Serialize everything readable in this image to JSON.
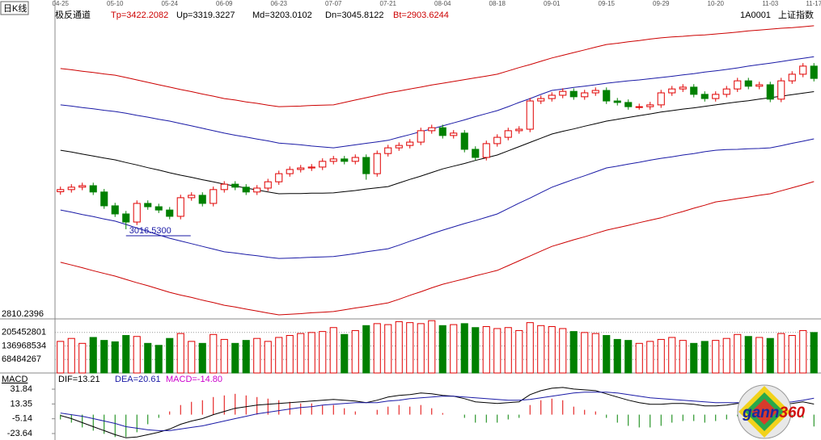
{
  "header": {
    "period": "日K线",
    "indicator": "极反通道",
    "values": [
      {
        "text": "Tp=3422.2082",
        "color": "#cc0000"
      },
      {
        "text": "Up=3319.3227",
        "color": "#000000"
      },
      {
        "text": "Md=3203.0102",
        "color": "#000000"
      },
      {
        "text": "Dn=3045.8122",
        "color": "#000000"
      },
      {
        "text": "Bt=2903.6244",
        "color": "#cc0000"
      }
    ],
    "code": "1A0001",
    "name": "上证指数"
  },
  "logo": {
    "part1": "gann",
    "part2": "360"
  },
  "chart_data": [
    {
      "type": "candlestick",
      "categories": [
        "04-25",
        null,
        null,
        null,
        null,
        "05-10",
        null,
        null,
        null,
        null,
        "05-24",
        null,
        null,
        null,
        null,
        "06-09",
        null,
        null,
        null,
        null,
        "06-23",
        null,
        null,
        null,
        null,
        "07-07",
        null,
        null,
        null,
        null,
        "07-21",
        null,
        null,
        null,
        null,
        "08-04",
        null,
        null,
        null,
        null,
        "08-18",
        null,
        null,
        null,
        null,
        "09-01",
        null,
        null,
        null,
        null,
        "09-15",
        null,
        null,
        null,
        null,
        "09-29",
        null,
        null,
        null,
        null,
        "10-20",
        null,
        null,
        null,
        null,
        "11-03",
        null,
        null,
        null,
        "11-17"
      ],
      "open": [
        2870,
        2877,
        2885,
        2890,
        2869,
        2823,
        2796,
        2769,
        2831,
        2820,
        2809,
        2788,
        2850,
        2858,
        2831,
        2877,
        2895,
        2885,
        2869,
        2882,
        2903,
        2930,
        2944,
        2949,
        2952,
        2971,
        2979,
        2971,
        2984,
        2930,
        2997,
        3016,
        3024,
        3035,
        3073,
        3083,
        3057,
        3065,
        3011,
        2984,
        3030,
        3051,
        3073,
        3078,
        3172,
        3180,
        3191,
        3204,
        3186,
        3199,
        3207,
        3172,
        3167,
        3153,
        3153,
        3159,
        3199,
        3212,
        3218,
        3194,
        3180,
        3194,
        3212,
        3239,
        3221,
        3226,
        3178,
        3239,
        3261,
        3288
      ],
      "high": [
        2887,
        2895,
        2900,
        2900,
        2879,
        2833,
        2806,
        2841,
        2841,
        2830,
        2819,
        2860,
        2868,
        2868,
        2887,
        2905,
        2905,
        2895,
        2892,
        2913,
        2940,
        2954,
        2959,
        2962,
        2981,
        2989,
        2989,
        2994,
        2994,
        3007,
        3026,
        3034,
        3045,
        3083,
        3093,
        3093,
        3075,
        3075,
        3021,
        3040,
        3061,
        3083,
        3088,
        3182,
        3190,
        3201,
        3214,
        3214,
        3209,
        3217,
        3217,
        3182,
        3177,
        3163,
        3169,
        3209,
        3222,
        3228,
        3228,
        3204,
        3204,
        3222,
        3249,
        3249,
        3236,
        3236,
        3249,
        3271,
        3298,
        3298
      ],
      "low": [
        2860,
        2867,
        2875,
        2859,
        2813,
        2786,
        2745,
        2759,
        2810,
        2799,
        2778,
        2778,
        2840,
        2821,
        2821,
        2867,
        2875,
        2859,
        2859,
        2872,
        2893,
        2920,
        2934,
        2939,
        2942,
        2961,
        2961,
        2961,
        2910,
        2920,
        2987,
        3006,
        3014,
        3025,
        3063,
        3047,
        3047,
        3001,
        2974,
        2974,
        3020,
        3041,
        3063,
        3068,
        3162,
        3170,
        3181,
        3176,
        3176,
        3189,
        3162,
        3157,
        3143,
        3143,
        3143,
        3149,
        3189,
        3202,
        3184,
        3170,
        3170,
        3184,
        3202,
        3211,
        3211,
        3168,
        3168,
        3229,
        3251,
        3237
      ],
      "close": [
        2877,
        2885,
        2890,
        2869,
        2823,
        2796,
        2769,
        2831,
        2820,
        2809,
        2788,
        2850,
        2858,
        2831,
        2877,
        2895,
        2885,
        2869,
        2882,
        2903,
        2930,
        2944,
        2949,
        2952,
        2971,
        2979,
        2971,
        2984,
        2930,
        2997,
        3016,
        3024,
        3035,
        3073,
        3083,
        3057,
        3065,
        3011,
        2984,
        3030,
        3051,
        3073,
        3078,
        3172,
        3180,
        3191,
        3204,
        3186,
        3199,
        3207,
        3172,
        3167,
        3153,
        3153,
        3159,
        3199,
        3212,
        3218,
        3194,
        3180,
        3194,
        3212,
        3239,
        3221,
        3226,
        3178,
        3239,
        3261,
        3288,
        3247
      ],
      "up_color": "#e00000",
      "down_color": "#008000",
      "ylim": [
        2446.6,
        3475.8
      ],
      "annotation": "3016.5300",
      "annotation_color": "#1a1aa6",
      "bottom_label": "2810.2396",
      "series": [
        {
          "color": "#cc0000",
          "values": [
            3280,
            3276,
            3271,
            3267,
            3262,
            3258,
            3250,
            3242,
            3234,
            3226,
            3218,
            3210,
            3203,
            3195,
            3188,
            3180,
            3175,
            3169,
            3164,
            3158,
            3153,
            3154,
            3155,
            3157,
            3158,
            3159,
            3167,
            3175,
            3183,
            3191,
            3199,
            3205,
            3212,
            3218,
            3225,
            3231,
            3237,
            3243,
            3249,
            3255,
            3261,
            3272,
            3283,
            3293,
            3304,
            3315,
            3324,
            3333,
            3342,
            3351,
            3360,
            3364,
            3369,
            3373,
            3378,
            3382,
            3385,
            3387,
            3390,
            3392,
            3395,
            3398,
            3401,
            3405,
            3408,
            3411,
            3414,
            3416,
            3419,
            3422.2082
          ]
        },
        {
          "color": "#1a1aa6",
          "values": [
            3159,
            3155,
            3150,
            3146,
            3141,
            3137,
            3131,
            3124,
            3118,
            3111,
            3105,
            3097,
            3089,
            3081,
            3073,
            3065,
            3058,
            3052,
            3045,
            3039,
            3032,
            3029,
            3026,
            3022,
            3019,
            3016,
            3021,
            3026,
            3031,
            3036,
            3041,
            3051,
            3060,
            3070,
            3079,
            3089,
            3099,
            3109,
            3120,
            3130,
            3140,
            3153,
            3167,
            3180,
            3194,
            3207,
            3212,
            3217,
            3221,
            3226,
            3231,
            3235,
            3239,
            3242,
            3246,
            3250,
            3254,
            3259,
            3263,
            3268,
            3272,
            3277,
            3282,
            3288,
            3293,
            3298,
            3303,
            3309,
            3314,
            3319.3227
          ]
        },
        {
          "color": "#000000",
          "values": [
            3008,
            3002,
            2995,
            2989,
            2982,
            2976,
            2967,
            2959,
            2950,
            2942,
            2933,
            2925,
            2918,
            2910,
            2903,
            2895,
            2889,
            2882,
            2876,
            2869,
            2863,
            2864,
            2864,
            2865,
            2865,
            2866,
            2870,
            2874,
            2879,
            2883,
            2887,
            2899,
            2911,
            2922,
            2934,
            2946,
            2955,
            2964,
            2974,
            2983,
            2992,
            3006,
            3020,
            3034,
            3048,
            3062,
            3071,
            3079,
            3088,
            3096,
            3105,
            3111,
            3117,
            3123,
            3129,
            3135,
            3140,
            3145,
            3149,
            3154,
            3159,
            3164,
            3169,
            3173,
            3178,
            3183,
            3188,
            3193,
            3198,
            3203.0102
          ]
        },
        {
          "color": "#1a1aa6",
          "values": [
            2809,
            2802,
            2794,
            2787,
            2779,
            2772,
            2761,
            2749,
            2738,
            2726,
            2715,
            2706,
            2697,
            2688,
            2679,
            2670,
            2666,
            2661,
            2657,
            2652,
            2648,
            2649,
            2650,
            2652,
            2653,
            2654,
            2659,
            2664,
            2670,
            2675,
            2680,
            2692,
            2705,
            2717,
            2730,
            2742,
            2753,
            2764,
            2774,
            2785,
            2796,
            2814,
            2832,
            2849,
            2867,
            2885,
            2898,
            2911,
            2923,
            2936,
            2949,
            2955,
            2962,
            2968,
            2975,
            2981,
            2986,
            2992,
            2997,
            3003,
            3008,
            3010,
            3011,
            3013,
            3014,
            3016,
            3023,
            3031,
            3038,
            3045.8122
          ]
        },
        {
          "color": "#cc0000",
          "values": [
            2635,
            2626,
            2617,
            2607,
            2598,
            2589,
            2578,
            2567,
            2557,
            2546,
            2535,
            2526,
            2518,
            2509,
            2501,
            2492,
            2486,
            2479,
            2473,
            2466,
            2460,
            2462,
            2464,
            2467,
            2469,
            2471,
            2477,
            2483,
            2488,
            2494,
            2500,
            2512,
            2525,
            2537,
            2550,
            2562,
            2571,
            2580,
            2590,
            2599,
            2608,
            2624,
            2640,
            2656,
            2672,
            2688,
            2699,
            2710,
            2720,
            2731,
            2742,
            2750,
            2758,
            2767,
            2775,
            2783,
            2794,
            2804,
            2815,
            2825,
            2836,
            2841,
            2847,
            2852,
            2858,
            2863,
            2873,
            2883,
            2893,
            2903.6244
          ]
        }
      ]
    },
    {
      "type": "bar",
      "values": [
        160000000,
        175000000,
        150000000,
        180000000,
        165000000,
        158000000,
        190000000,
        185000000,
        150000000,
        140000000,
        175000000,
        200000000,
        160000000,
        150000000,
        195000000,
        170000000,
        150000000,
        165000000,
        175000000,
        160000000,
        180000000,
        190000000,
        200000000,
        205000000,
        210000000,
        230000000,
        195000000,
        215000000,
        240000000,
        250000000,
        245000000,
        260000000,
        255000000,
        250000000,
        265000000,
        240000000,
        245000000,
        250000000,
        230000000,
        235000000,
        225000000,
        230000000,
        215000000,
        255000000,
        240000000,
        235000000,
        225000000,
        210000000,
        205000000,
        200000000,
        190000000,
        170000000,
        165000000,
        150000000,
        160000000,
        170000000,
        180000000,
        165000000,
        150000000,
        160000000,
        165000000,
        175000000,
        195000000,
        185000000,
        180000000,
        175000000,
        200000000,
        190000000,
        215000000,
        205000000
      ],
      "ylim": [
        0,
        273937068
      ],
      "yticks": [
        68484267,
        136968534,
        205452801
      ],
      "grid": true
    },
    {
      "type": "macd",
      "title": "MACD",
      "ylim": [
        -31.7,
        46.0
      ],
      "yticks": [
        -23.64,
        -5.14,
        13.35,
        31.84
      ],
      "series": [
        {
          "name": "DIF=13.21",
          "color": "#000000",
          "values": [
            -1,
            -5,
            -10,
            -15,
            -20,
            -25,
            -29,
            -28,
            -25,
            -22,
            -18,
            -12,
            -8,
            -5,
            0,
            4,
            8,
            10,
            12,
            13,
            14,
            15,
            16,
            17,
            18,
            19,
            18,
            17,
            15,
            18,
            22,
            24,
            25,
            27,
            26,
            24,
            23,
            20,
            16,
            15,
            14,
            15,
            16,
            25,
            30,
            33,
            34,
            32,
            31,
            30,
            26,
            22,
            18,
            15,
            13,
            13,
            14,
            14,
            13,
            11,
            11,
            12,
            14,
            14,
            15,
            12,
            13,
            14,
            16,
            13.21
          ]
        },
        {
          "name": "DEA=20.61",
          "color": "#1a1aa6",
          "values": [
            2,
            0,
            -2,
            -5,
            -8,
            -11,
            -15,
            -17,
            -19,
            -20,
            -20,
            -18,
            -16,
            -14,
            -11,
            -8,
            -5,
            -2,
            1,
            3,
            5,
            7,
            9,
            10,
            12,
            13,
            14,
            15,
            15,
            15,
            17,
            18,
            20,
            21,
            22,
            23,
            23,
            22,
            21,
            20,
            19,
            18,
            18,
            19,
            21,
            23,
            25,
            27,
            28,
            28,
            28,
            27,
            25,
            23,
            21,
            20,
            19,
            18,
            17,
            16,
            15,
            15,
            15,
            15,
            15,
            15,
            15,
            16,
            18,
            20.61
          ]
        },
        {
          "name": "MACD=-14.80",
          "color": "#cc00cc",
          "style": "bar",
          "up_color": "#e00000",
          "down_color": "#008000",
          "values": [
            -6,
            -10,
            -16,
            -20,
            -24,
            -28,
            -28,
            -22,
            -12,
            -4,
            4,
            12,
            16,
            18,
            22,
            24,
            26,
            24,
            22,
            20,
            18,
            16,
            14,
            14,
            12,
            12,
            8,
            4,
            0,
            6,
            10,
            12,
            10,
            12,
            8,
            2,
            0,
            -4,
            -10,
            -10,
            -10,
            -6,
            -4,
            12,
            18,
            20,
            18,
            10,
            6,
            4,
            -4,
            -10,
            -14,
            -16,
            -16,
            -14,
            -10,
            -8,
            -8,
            -10,
            -8,
            -6,
            -2,
            -2,
            0,
            -6,
            -4,
            -4,
            -4,
            -14.8
          ]
        }
      ]
    }
  ]
}
